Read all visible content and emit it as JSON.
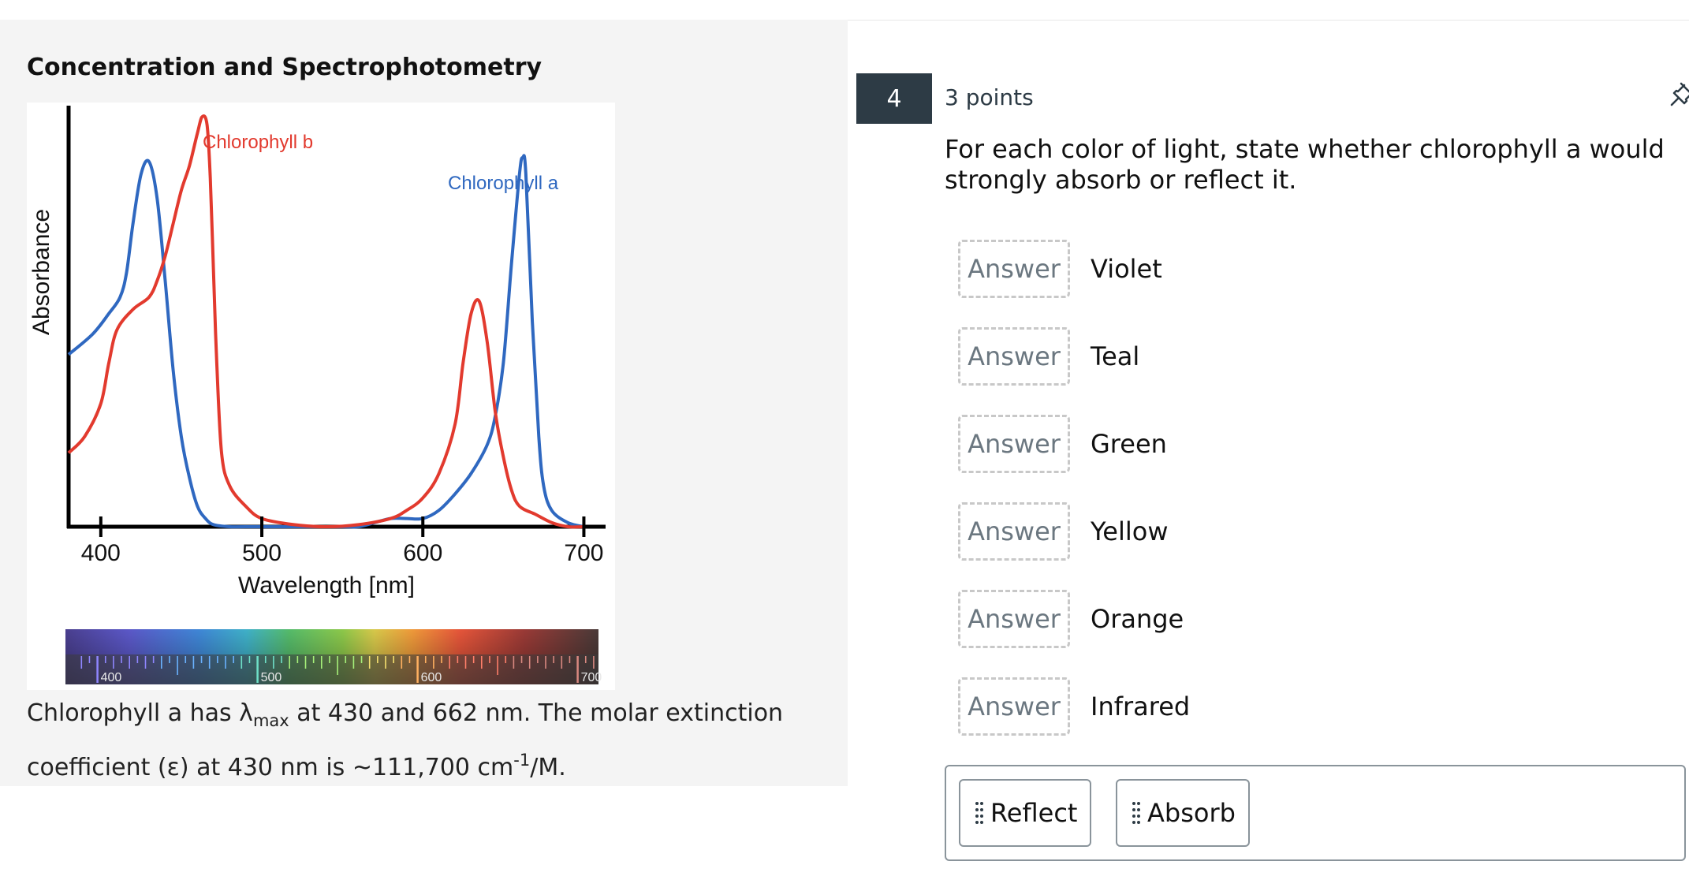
{
  "left": {
    "title": "Concentration and Spectrophotometry",
    "caption": {
      "part1": "Chlorophyll a has λ",
      "sub": "max",
      "part2": " at 430 and 662 nm. The molar extinction coefficient (ε) at 430 nm is ~111,700 cm",
      "sup": "-1",
      "part3": "/M."
    }
  },
  "chart_data": {
    "type": "line",
    "ylabel": "Absorbance",
    "xlabel": "Wavelength [nm]",
    "xticks": [
      "400",
      "500",
      "600",
      "700"
    ],
    "spectrum_ticks": [
      "400",
      "500",
      "600",
      "700"
    ],
    "grid": false,
    "series": [
      {
        "name": "Chlorophyll a",
        "color": "#2f68c0",
        "x": [
          380,
          395,
          405,
          412,
          416,
          420,
          425,
          430,
          435,
          440,
          445,
          450,
          455,
          460,
          465,
          470,
          480,
          490,
          520,
          550,
          560,
          570,
          580,
          590,
          600,
          610,
          620,
          630,
          640,
          645,
          650,
          655,
          660,
          662,
          664,
          668,
          672,
          675,
          680,
          690,
          700
        ],
        "y": [
          0.42,
          0.47,
          0.52,
          0.56,
          0.62,
          0.74,
          0.86,
          0.89,
          0.8,
          0.6,
          0.38,
          0.22,
          0.12,
          0.05,
          0.02,
          0.005,
          0,
          0,
          0,
          0,
          0,
          0.01,
          0.02,
          0.02,
          0.02,
          0.04,
          0.08,
          0.13,
          0.2,
          0.27,
          0.4,
          0.64,
          0.86,
          0.9,
          0.86,
          0.5,
          0.22,
          0.1,
          0.04,
          0.01,
          0
        ]
      },
      {
        "name": "Chlorophyll b",
        "color": "#e23a2e",
        "x": [
          380,
          390,
          400,
          405,
          410,
          420,
          430,
          435,
          440,
          445,
          450,
          455,
          460,
          463,
          466,
          468,
          470,
          472,
          475,
          480,
          490,
          500,
          520,
          540,
          560,
          580,
          590,
          600,
          610,
          620,
          625,
          630,
          635,
          640,
          645,
          650,
          655,
          660,
          670,
          680,
          690,
          700
        ],
        "y": [
          0.18,
          0.22,
          0.3,
          0.4,
          0.48,
          0.53,
          0.56,
          0.6,
          0.66,
          0.74,
          0.82,
          0.88,
          0.96,
          1.0,
          0.98,
          0.85,
          0.62,
          0.4,
          0.18,
          0.1,
          0.05,
          0.02,
          0.005,
          0,
          0.005,
          0.02,
          0.04,
          0.07,
          0.13,
          0.25,
          0.4,
          0.52,
          0.55,
          0.45,
          0.28,
          0.17,
          0.09,
          0.05,
          0.03,
          0.01,
          0,
          0
        ]
      }
    ],
    "annotations": [
      "Chlorophyll b",
      "Chlorophyll a"
    ]
  },
  "question": {
    "number": "4",
    "points": "3 points",
    "prompt": "For each color of light, state whether chlorophyll a would strongly absorb or reflect it.",
    "rows": [
      {
        "answer": "Answer",
        "label": "Violet"
      },
      {
        "answer": "Answer",
        "label": "Teal"
      },
      {
        "answer": "Answer",
        "label": "Green"
      },
      {
        "answer": "Answer",
        "label": "Yellow"
      },
      {
        "answer": "Answer",
        "label": "Orange"
      },
      {
        "answer": "Answer",
        "label": "Infrared"
      }
    ],
    "choices": [
      "Reflect",
      "Absorb"
    ]
  },
  "icons": {
    "pin": "pin-icon",
    "drag_handle": "drag-handle-icon"
  }
}
